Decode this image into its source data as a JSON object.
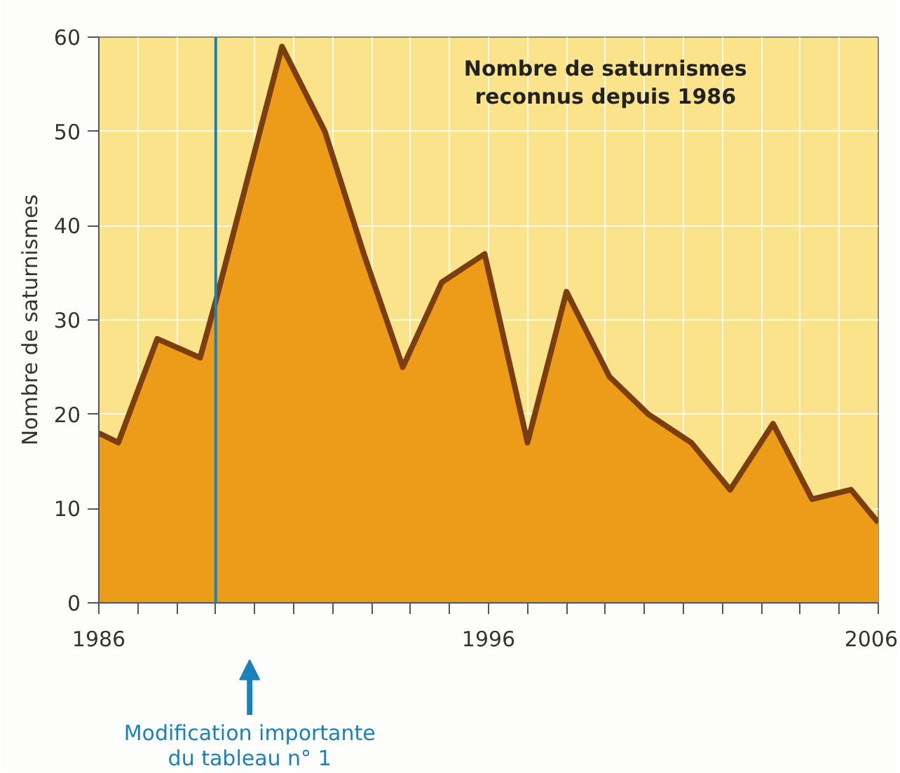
{
  "chart_data": {
    "type": "area",
    "title": "Nombre de saturnismes\nreconnus depuis 1986",
    "ylabel": "Nombre de saturnismes",
    "x": [
      1986,
      1986.5,
      1987.5,
      1988.6,
      1989,
      1990.7,
      1991.8,
      1992.8,
      1993.8,
      1994.8,
      1995.9,
      1997,
      1998,
      1999.1,
      2000.1,
      2001.2,
      2002.2,
      2003.3,
      2004.3,
      2005.3,
      2006
    ],
    "series": [
      {
        "color": "#ed9c1a",
        "values": [
          18,
          17,
          28,
          26,
          32,
          59,
          50,
          37,
          25,
          34,
          37,
          17,
          33,
          24,
          20,
          17,
          12,
          19,
          11,
          12,
          8.5
        ]
      }
    ],
    "xlim": [
      1986,
      2006
    ],
    "ylim": [
      0,
      60
    ],
    "xticks": [
      1986,
      {
        "value": 1987,
        "label": null
      },
      {
        "value": 1988,
        "label": null
      },
      {
        "value": 1989,
        "label": null
      },
      {
        "value": 1990,
        "label": null
      },
      {
        "value": 1991,
        "label": null
      },
      {
        "value": 1992,
        "label": null
      },
      {
        "value": 1993,
        "label": null
      },
      {
        "value": 1994,
        "label": null
      },
      {
        "value": 1995,
        "label": null
      },
      1996,
      {
        "value": 1997,
        "label": null
      },
      {
        "value": 1998,
        "label": null
      },
      {
        "value": 1999,
        "label": null
      },
      {
        "value": 2000,
        "label": null
      },
      {
        "value": 2001,
        "label": null
      },
      {
        "value": 2002,
        "label": null
      },
      {
        "value": 2003,
        "label": null
      },
      {
        "value": 2004,
        "label": null
      },
      {
        "value": 2005,
        "label": null
      },
      2006
    ],
    "yticks": [
      0,
      10,
      20,
      30,
      40,
      50,
      60
    ],
    "grid": true,
    "ref_lines": [
      {
        "axis": "x",
        "value": 1989,
        "label": "Modification importante\ndu tableau n° 1",
        "color": "#1a82b8"
      }
    ]
  }
}
